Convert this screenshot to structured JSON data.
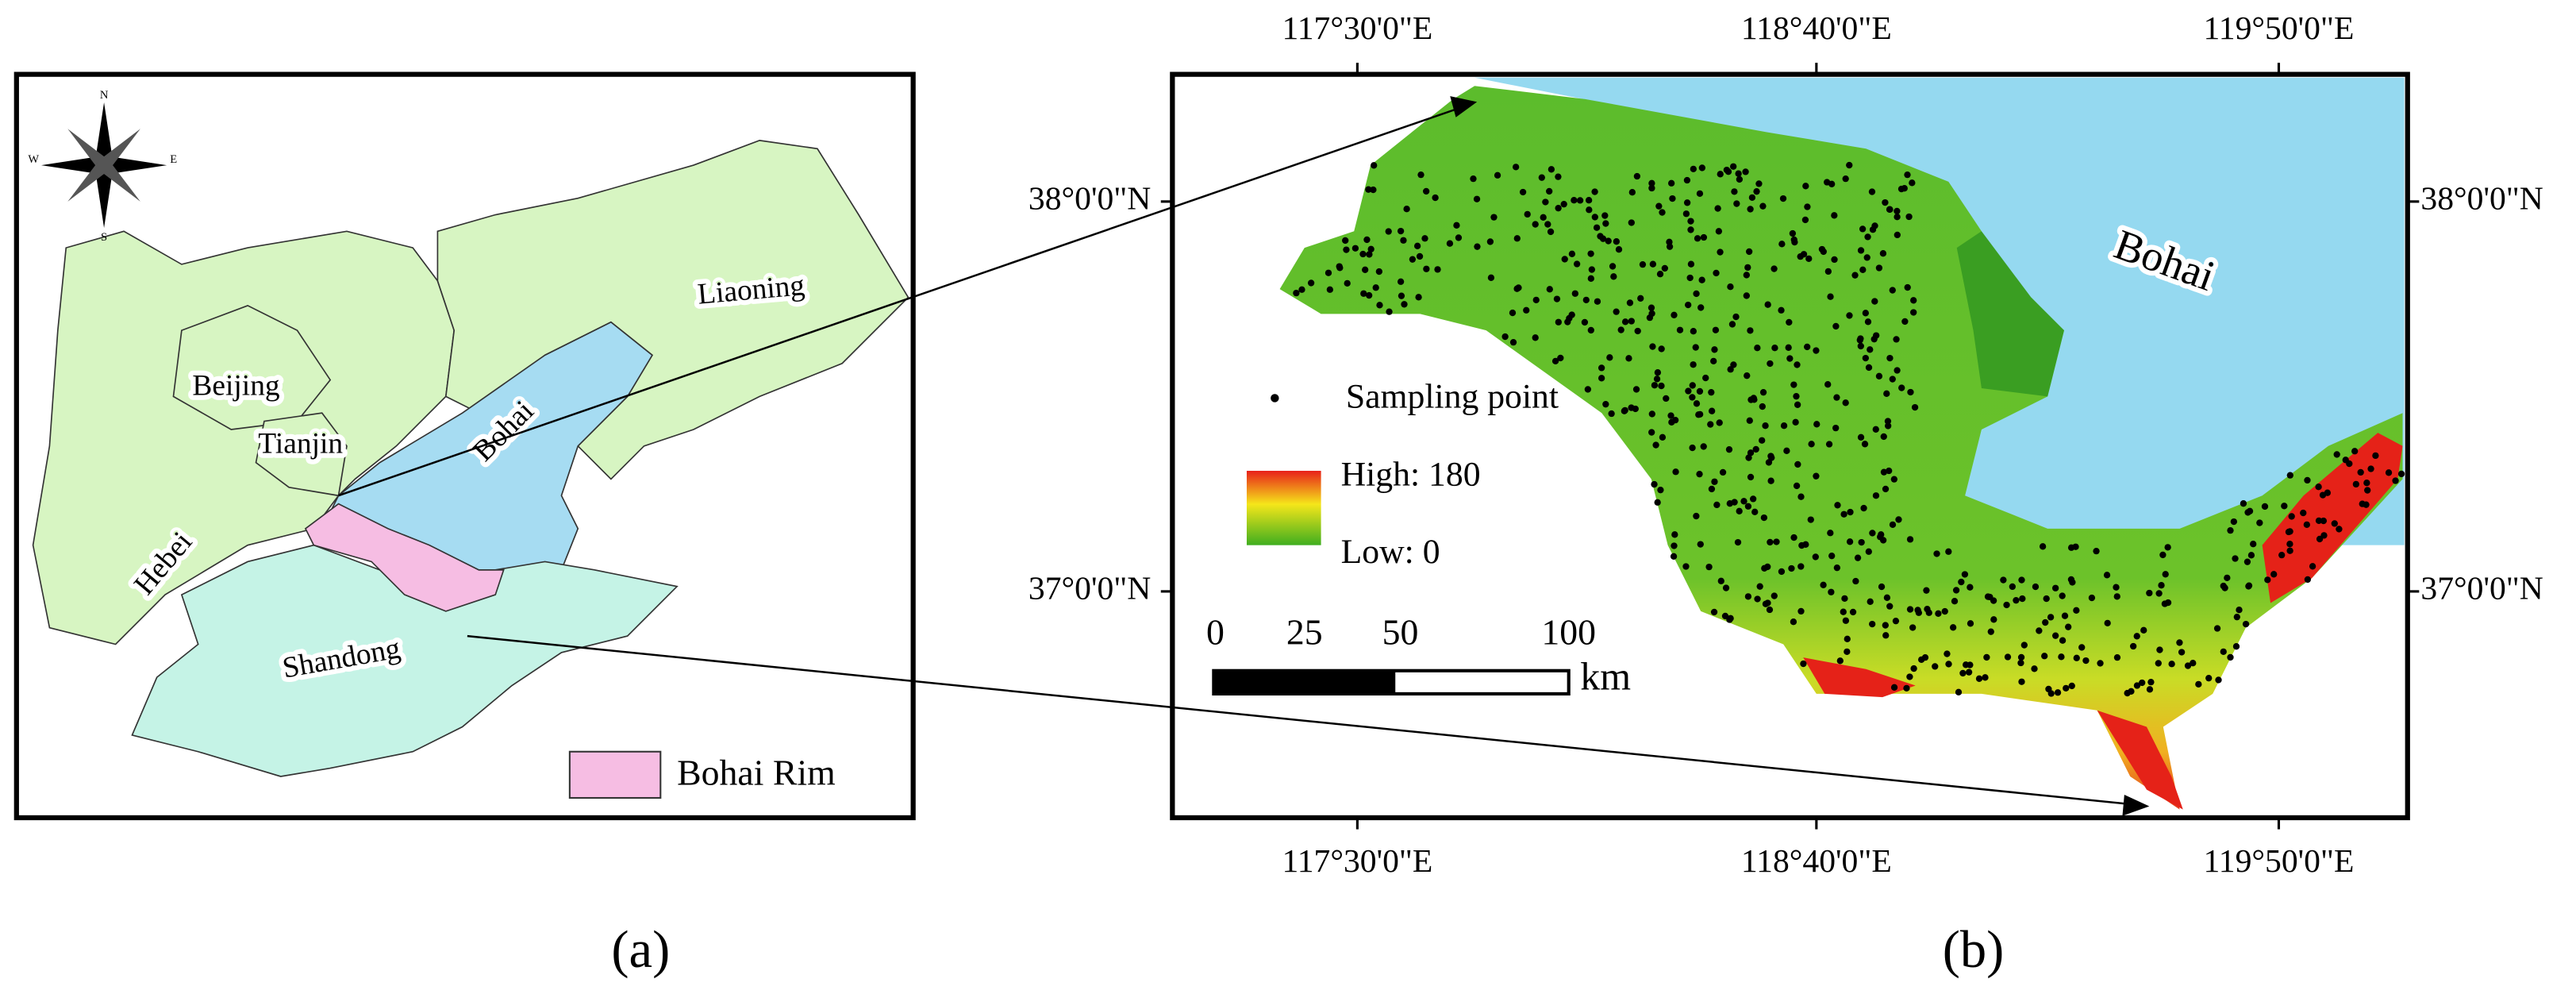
{
  "panel_a": {
    "compass": {
      "n": "N",
      "s": "S",
      "e": "E",
      "w": "W"
    },
    "labels": {
      "liaoning": "Liaoning",
      "beijing": "Beijing",
      "tianjin": "Tianjin",
      "bohai": "Bohai",
      "hebei": "Hebei",
      "shandong": "Shandong"
    },
    "legend": "Bohai Rim",
    "caption": "(a)"
  },
  "panel_b": {
    "top_ticks": [
      "117°30'0\"E",
      "118°40'0\"E",
      "119°50'0\"E"
    ],
    "bottom_ticks": [
      "117°30'0\"E",
      "118°40'0\"E",
      "119°50'0\"E"
    ],
    "left_ticks": [
      "38°0'0\"N",
      "37°0'0\"N"
    ],
    "right_ticks": [
      "38°0'0\"N",
      "37°0'0\"N"
    ],
    "sea_label": "Bohai",
    "legend": {
      "points": "Sampling point",
      "high": "High: 180",
      "low": "Low: 0"
    },
    "scale_bar": {
      "labels": [
        "0",
        "25",
        "50",
        "100"
      ],
      "unit": "km"
    },
    "caption": "(b)"
  }
}
